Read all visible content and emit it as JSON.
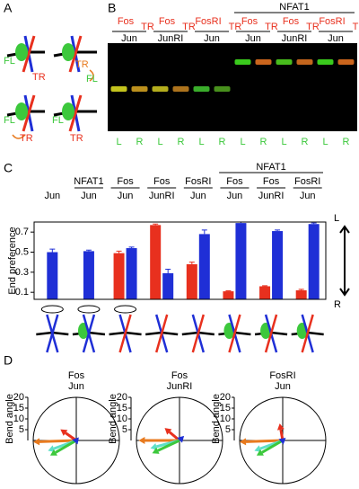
{
  "panel_labels": [
    "A",
    "B",
    "C",
    "D"
  ],
  "panel_a": {
    "diagrams": [
      {
        "labels": [
          "FL",
          "TR"
        ]
      },
      {
        "labels": [
          "TR",
          "FL"
        ]
      },
      {
        "labels": [
          "FL",
          "TR"
        ]
      },
      {
        "labels": [
          "FL",
          "TR"
        ]
      }
    ]
  },
  "panel_b": {
    "group_label": "NFAT1",
    "lanes": [
      {
        "top": "Fos",
        "sub": "TR",
        "bottom": "Jun"
      },
      {
        "top": "Fos",
        "sub": "TR",
        "bottom": "JunRI"
      },
      {
        "top": "FosRI",
        "sub": "TR",
        "bottom": "Jun"
      },
      {
        "top": "Fos",
        "sub": "TR",
        "bottom": "Jun"
      },
      {
        "top": "Fos",
        "sub": "TR",
        "bottom": "JunRI"
      },
      {
        "top": "FosRI",
        "sub": "TR",
        "bottom": "Jun"
      }
    ],
    "lane_labels": [
      "L",
      "R",
      "L",
      "R",
      "L",
      "R",
      "L",
      "R",
      "L",
      "R",
      "L",
      "R"
    ]
  },
  "chart_data": [
    {
      "type": "bar",
      "ylabel": "End preference",
      "group_label": "NFAT1",
      "category_tops": [
        null,
        "NFAT1",
        "Fos",
        "Fos",
        "FosRI",
        "Fos",
        "Fos",
        "FosRI"
      ],
      "categories": [
        "Jun",
        "Jun",
        "Jun",
        "JunRI",
        "Jun",
        "Jun",
        "JunRI",
        "Jun"
      ],
      "series": [
        {
          "color": "#e8301e",
          "values": [
            null,
            null,
            0.49,
            0.77,
            0.38,
            0.11,
            0.16,
            0.12
          ],
          "errors": [
            null,
            null,
            0.02,
            0.01,
            0.02,
            0.005,
            0.005,
            0.01
          ]
        },
        {
          "color": "#1f2fd6",
          "values": [
            0.5,
            0.51,
            0.54,
            0.29,
            0.68,
            0.79,
            0.71,
            0.78
          ],
          "errors": [
            0.03,
            0.01,
            0.01,
            0.04,
            0.04,
            0.01,
            0.01,
            0.01
          ]
        }
      ],
      "ylim": [
        0.03,
        0.8
      ],
      "yticks": [
        0.1,
        0.3,
        0.5,
        0.7
      ],
      "right_labels": [
        "L",
        "R"
      ]
    },
    {
      "type": "polar-arrows",
      "title_lines": [
        "Fos",
        "Jun"
      ],
      "ylabel": "Bend angle",
      "rlim": [
        0,
        20
      ],
      "rticks": [
        5,
        10,
        15,
        20
      ],
      "arrows": [
        {
          "color": "#e8301e",
          "angle": 145,
          "magnitude": 9
        },
        {
          "color": "#e87a1e",
          "angle": 182,
          "magnitude": 20
        },
        {
          "color": "#5fe0c8",
          "angle": 200,
          "magnitude": 14
        },
        {
          "color": "#3cc83c",
          "angle": 210,
          "magnitude": 14
        },
        {
          "color": "#1f2fd6",
          "angle": 170,
          "magnitude": 2
        }
      ]
    },
    {
      "type": "polar-arrows",
      "title_lines": [
        "Fos",
        "JunRI"
      ],
      "ylabel": "Bend angle",
      "rlim": [
        0,
        20
      ],
      "rticks": [
        5,
        10,
        15,
        20
      ],
      "arrows": [
        {
          "color": "#e8301e",
          "angle": 140,
          "magnitude": 9
        },
        {
          "color": "#e87a1e",
          "angle": 180,
          "magnitude": 19
        },
        {
          "color": "#5fe0c8",
          "angle": 195,
          "magnitude": 14
        },
        {
          "color": "#3cc83c",
          "angle": 205,
          "magnitude": 14
        },
        {
          "color": "#1f2fd6",
          "angle": 45,
          "magnitude": 3
        }
      ]
    },
    {
      "type": "polar-arrows",
      "title_lines": [
        "FosRI",
        "Jun"
      ],
      "ylabel": "Bend angle",
      "rlim": [
        0,
        20
      ],
      "rticks": [
        5,
        10,
        15,
        20
      ],
      "arrows": [
        {
          "color": "#e8301e",
          "angle": 100,
          "magnitude": 8
        },
        {
          "color": "#e87a1e",
          "angle": 182,
          "magnitude": 20
        },
        {
          "color": "#5fe0c8",
          "angle": 200,
          "magnitude": 14
        },
        {
          "color": "#3cc83c",
          "angle": 210,
          "magnitude": 14
        },
        {
          "color": "#1f2fd6",
          "angle": 160,
          "magnitude": 2
        }
      ]
    }
  ]
}
